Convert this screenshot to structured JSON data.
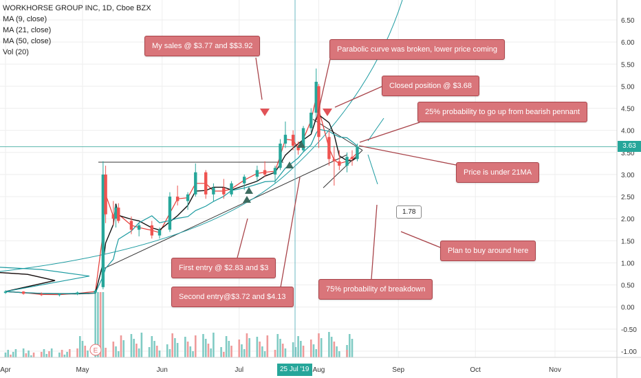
{
  "chart_data": {
    "type": "candlestick",
    "symbol_title": "WORKHORSE GROUP INC, 1D, Cboe BZX",
    "indicators": [
      "MA (9, close)",
      "MA (21, close)",
      "MA (50, close)",
      "Vol (20)"
    ],
    "y_ticks": [
      "6.50",
      "6.00",
      "5.50",
      "5.00",
      "4.50",
      "4.00",
      "3.50",
      "3.00",
      "2.50",
      "2.00",
      "1.50",
      "1.00",
      "0.50",
      "0.00",
      "-0.50",
      "-1.00"
    ],
    "x_ticks": [
      {
        "label": "Apr",
        "date": "2019-04-01"
      },
      {
        "label": "May",
        "date": "2019-05-01"
      },
      {
        "label": "Jun",
        "date": "2019-06-01"
      },
      {
        "label": "Jul",
        "date": "2019-07-01"
      },
      {
        "label": "Aug",
        "date": "2019-08-01"
      },
      {
        "label": "Sep",
        "date": "2019-09-01"
      },
      {
        "label": "Oct",
        "date": "2019-10-01"
      },
      {
        "label": "Nov",
        "date": "2019-11-01"
      }
    ],
    "ylim": [
      -1.2,
      6.9
    ],
    "last_price": "3.63",
    "crosshair_date_label": "25 Jul '19",
    "earnings_marker": "E",
    "colors": {
      "up": "#26a69a",
      "down": "#ef5350",
      "ma9": "#e53935",
      "ma21": "#111111",
      "ma50": "#1a9aa0",
      "vol_up": "#80cbc4",
      "vol_down": "#ef9a9a"
    },
    "candles": [
      [
        "2019-04-01",
        0.32,
        0.38,
        0.3,
        0.35
      ],
      [
        "2019-04-08",
        0.35,
        0.36,
        0.28,
        0.3
      ],
      [
        "2019-04-15",
        0.3,
        0.33,
        0.25,
        0.27
      ],
      [
        "2019-04-22",
        0.27,
        0.31,
        0.24,
        0.29
      ],
      [
        "2019-04-29",
        0.29,
        0.35,
        0.27,
        0.33
      ],
      [
        "2019-05-06",
        0.33,
        0.4,
        0.3,
        0.37
      ],
      [
        "2019-05-09",
        0.45,
        3.3,
        0.4,
        3.0
      ],
      [
        "2019-05-10",
        3.0,
        3.2,
        1.9,
        2.1
      ],
      [
        "2019-05-13",
        2.1,
        2.4,
        1.85,
        2.0
      ],
      [
        "2019-05-14",
        2.0,
        2.3,
        1.8,
        2.25
      ],
      [
        "2019-05-15",
        2.25,
        2.35,
        1.9,
        1.95
      ],
      [
        "2019-05-20",
        1.95,
        2.05,
        1.65,
        1.75
      ],
      [
        "2019-05-23",
        1.75,
        1.9,
        1.6,
        1.85
      ],
      [
        "2019-05-28",
        1.85,
        1.95,
        1.55,
        1.62
      ],
      [
        "2019-05-31",
        1.62,
        1.8,
        1.55,
        1.75
      ],
      [
        "2019-06-04",
        1.75,
        2.6,
        1.7,
        2.5
      ],
      [
        "2019-06-07",
        2.5,
        2.75,
        2.3,
        2.4
      ],
      [
        "2019-06-11",
        2.4,
        2.6,
        2.2,
        2.55
      ],
      [
        "2019-06-14",
        2.55,
        3.25,
        2.5,
        3.05
      ],
      [
        "2019-06-18",
        3.05,
        3.1,
        2.45,
        2.55
      ],
      [
        "2019-06-21",
        2.55,
        2.8,
        2.4,
        2.7
      ],
      [
        "2019-06-25",
        2.7,
        2.9,
        2.45,
        2.55
      ],
      [
        "2019-06-28",
        2.55,
        2.85,
        2.5,
        2.8
      ],
      [
        "2019-07-03",
        2.8,
        3.0,
        2.65,
        2.95
      ],
      [
        "2019-07-08",
        2.95,
        3.2,
        2.85,
        3.1
      ],
      [
        "2019-07-11",
        3.1,
        3.3,
        2.95,
        3.0
      ],
      [
        "2019-07-15",
        3.0,
        3.2,
        2.8,
        3.15
      ],
      [
        "2019-07-17",
        3.15,
        3.8,
        3.1,
        3.7
      ],
      [
        "2019-07-19",
        3.7,
        4.2,
        3.6,
        3.9
      ],
      [
        "2019-07-22",
        3.9,
        4.0,
        3.55,
        3.65
      ],
      [
        "2019-07-24",
        3.65,
        3.75,
        3.45,
        3.55
      ],
      [
        "2019-07-26",
        3.55,
        4.1,
        3.5,
        4.05
      ],
      [
        "2019-07-29",
        4.05,
        4.5,
        3.95,
        4.4
      ],
      [
        "2019-07-31",
        4.4,
        5.4,
        4.3,
        5.1
      ],
      [
        "2019-08-01",
        5.0,
        5.05,
        3.6,
        3.85
      ],
      [
        "2019-08-05",
        3.85,
        4.0,
        3.2,
        3.35
      ],
      [
        "2019-08-07",
        3.35,
        3.65,
        2.75,
        3.3
      ],
      [
        "2019-08-09",
        3.3,
        3.55,
        3.1,
        3.2
      ],
      [
        "2019-08-12",
        3.2,
        3.5,
        3.05,
        3.4
      ],
      [
        "2019-08-14",
        3.4,
        3.55,
        3.2,
        3.35
      ],
      [
        "2019-08-16",
        3.35,
        3.7,
        3.3,
        3.63
      ]
    ],
    "annotations": [
      {
        "text": "My sales @ $3.77 and $$3.92"
      },
      {
        "text": "Parabolic curve was broken, lower price coming"
      },
      {
        "text": "Closed position @ $3.68"
      },
      {
        "text": "25% probability to go up from bearish pennant"
      },
      {
        "text": "Price is under 21MA"
      },
      {
        "text": "First entry @ $2.83 and $3"
      },
      {
        "text": "Second entry@$3.72 and $4.13"
      },
      {
        "text": "75% probability of breakdown"
      },
      {
        "text": "Plan to buy around here"
      }
    ],
    "callout_value": "1.78"
  }
}
